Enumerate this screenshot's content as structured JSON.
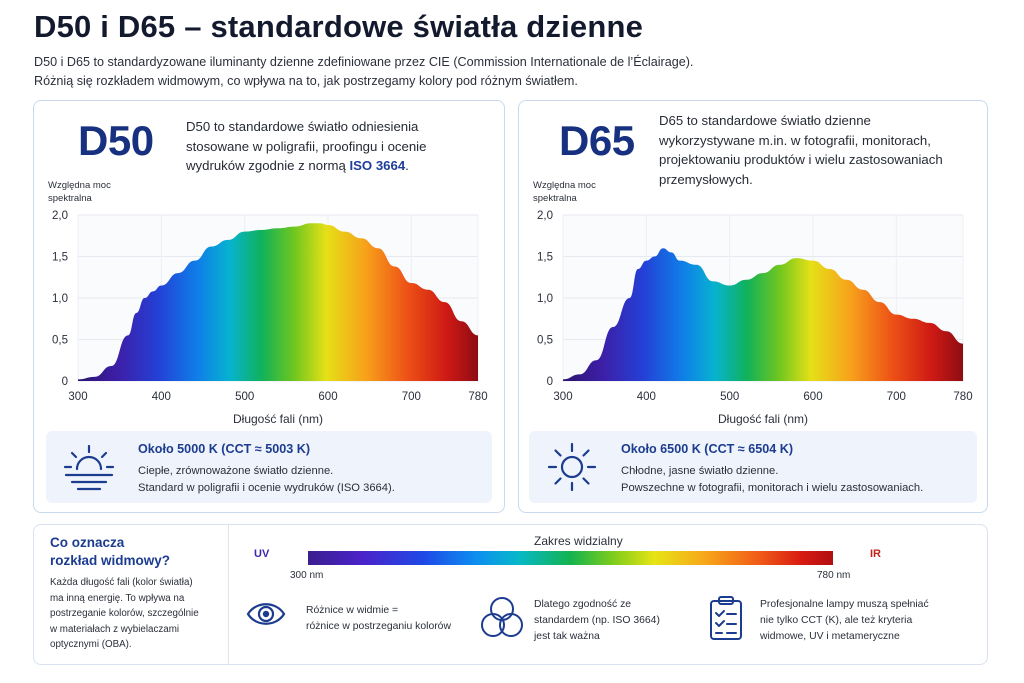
{
  "header": {
    "title": "D50 i D65 – standardowe światła dzienne",
    "intro_line1": "D50 i D65 to standardyzowane iluminanty dzienne zdefiniowane przez CIE (Commission Internationale de l’Éclairage).",
    "intro_line2": "Różnią się rozkładem widmowym, co wpływa na to, jak postrzegamy kolory pod różnym światłem."
  },
  "panels": {
    "d50": {
      "name": "D50",
      "desc_line1": "D50 to standardowe światło odniesienia",
      "desc_line2": "stosowane w poligrafii, proofingu i ocenie",
      "desc_line3_pre": "wydruków zgodnie z normą ",
      "desc_highlight": "ISO 3664",
      "desc_line3_post": ".",
      "ylabel_line1": "Względna moc",
      "ylabel_line2": "spektralna",
      "xlabel": "Długość fali (nm)",
      "info_title": "Około 5000 K (CCT ≈ 5003 K)",
      "info_line1": "Ciepłe, zrównoważone światło dzienne.",
      "info_line2": "Standard w poligrafii i ocenie wydruków (ISO 3664).",
      "info_icon": "sunset-icon"
    },
    "d65": {
      "name": "D65",
      "desc_line1": "D65 to standardowe światło dzienne",
      "desc_line2": "wykorzystywane m.in. w fotografii, monitorach,",
      "desc_line3": "projektowaniu produktów i wielu zastosowaniach",
      "desc_line4": "przemysłowych.",
      "ylabel_line1": "Względna moc",
      "ylabel_line2": "spektralna",
      "xlabel": "Długość fali (nm)",
      "info_title": "Około 6500 K (CCT ≈ 6504 K)",
      "info_line1": "Chłodne, jasne światło dzienne.",
      "info_line2": "Powszechne w fotografii, monitorach i wielu zastosowaniach.",
      "info_icon": "sun-icon"
    }
  },
  "chart_data": [
    {
      "type": "area",
      "series": [
        {
          "name": "D50",
          "x": [
            300,
            320,
            340,
            360,
            370,
            380,
            390,
            400,
            420,
            440,
            460,
            480,
            500,
            520,
            540,
            560,
            580,
            590,
            600,
            620,
            640,
            660,
            680,
            700,
            720,
            740,
            760,
            780
          ],
          "y": [
            0.02,
            0.05,
            0.18,
            0.55,
            0.82,
            1.0,
            1.08,
            1.15,
            1.3,
            1.45,
            1.62,
            1.7,
            1.8,
            1.82,
            1.84,
            1.86,
            1.9,
            1.9,
            1.88,
            1.8,
            1.72,
            1.6,
            1.38,
            1.18,
            1.1,
            0.95,
            0.72,
            0.55
          ]
        }
      ],
      "xlim": [
        300,
        780
      ],
      "ylim": [
        0,
        2.0
      ],
      "xticks": [
        "300",
        "400",
        "500",
        "600",
        "700",
        "780"
      ],
      "yticks": [
        "0",
        "0,5",
        "1,0",
        "1,5",
        "2,0"
      ]
    },
    {
      "type": "area",
      "series": [
        {
          "name": "D65",
          "x": [
            300,
            320,
            340,
            360,
            380,
            390,
            400,
            410,
            420,
            430,
            440,
            460,
            480,
            500,
            520,
            540,
            560,
            580,
            600,
            620,
            640,
            660,
            680,
            700,
            720,
            740,
            760,
            780
          ],
          "y": [
            0.02,
            0.08,
            0.25,
            0.65,
            1.0,
            1.35,
            1.45,
            1.5,
            1.6,
            1.55,
            1.45,
            1.4,
            1.2,
            1.15,
            1.22,
            1.3,
            1.4,
            1.48,
            1.45,
            1.35,
            1.22,
            1.1,
            0.95,
            0.8,
            0.75,
            0.7,
            0.6,
            0.45
          ]
        }
      ],
      "xlim": [
        300,
        780
      ],
      "ylim": [
        0,
        2.0
      ],
      "xticks": [
        "300",
        "400",
        "500",
        "600",
        "700",
        "780"
      ],
      "yticks": [
        "0",
        "0,5",
        "1,0",
        "1,5",
        "2,0"
      ]
    }
  ],
  "bottom": {
    "question_line1": "Co oznacza",
    "question_line2": "rozkład widmowy?",
    "desc_line1": "Każda długość fali (kolor światła)",
    "desc_line2": "ma inną energię. To wpływa na",
    "desc_line3": "postrzeganie kolorów, szczególnie",
    "desc_line4": "w materiałach z wybielaczami",
    "desc_line5": "optycznymi (OBA).",
    "range_title": "Zakres widzialny",
    "uv": "UV",
    "ir": "IR",
    "range_start": "300 nm",
    "range_end": "780 nm",
    "features": [
      {
        "icon": "eye-icon",
        "line1": "Różnice w widmie =",
        "line2": "różnice w postrzeganiu kolorów"
      },
      {
        "icon": "color-overlap-icon",
        "line1": "Dlatego zgodność ze",
        "line2": "standardem (np. ISO 3664)",
        "line3": "jest tak ważna"
      },
      {
        "icon": "checklist-icon",
        "line1": "Profesjonalne lampy muszą spełniać",
        "line2": "nie tylko CCT (K), ale też kryteria",
        "line3": "widmowe, UV i metameryczne"
      }
    ]
  }
}
